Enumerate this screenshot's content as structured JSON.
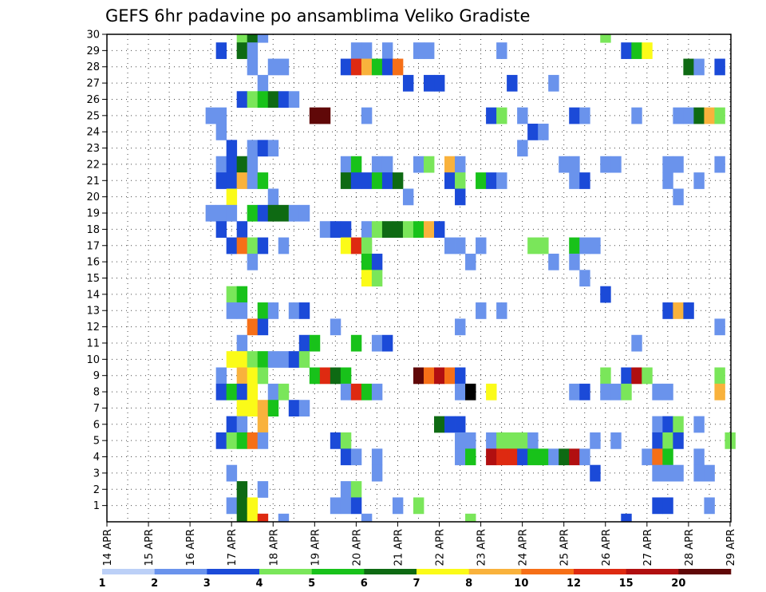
{
  "chart_data": {
    "type": "heatmap",
    "title": "GEFS 6hr padavine po ansamblima Veliko Gradiste",
    "y_ticks": [
      "1",
      "2",
      "3",
      "4",
      "5",
      "6",
      "7",
      "8",
      "9",
      "10",
      "11",
      "12",
      "13",
      "14",
      "15",
      "16",
      "17",
      "18",
      "19",
      "20",
      "21",
      "22",
      "23",
      "24",
      "25",
      "26",
      "27",
      "28",
      "29",
      "30"
    ],
    "x_ticks": [
      "14 APR",
      "15 APR",
      "16 APR",
      "17 APR",
      "18 APR",
      "19 APR",
      "20 APR",
      "21 APR",
      "22 APR",
      "23 APR",
      "24 APR",
      "25 APR",
      "26 APR",
      "27 APR",
      "28 APR",
      "29 APR"
    ],
    "x_range_days": [
      14,
      29
    ],
    "y_range_members": [
      0,
      30
    ],
    "grid": "dotted",
    "legend_position": "bottom",
    "colorbar": {
      "labels": [
        "1",
        "2",
        "3",
        "4",
        "5",
        "6",
        "7",
        "8",
        "10",
        "12",
        "15",
        "20"
      ],
      "colors": [
        "#bcd0f7",
        "#6a93ec",
        "#1b4ad8",
        "#7ae65a",
        "#18c21a",
        "#0e6a13",
        "#fbfb18",
        "#f9b23c",
        "#f66f17",
        "#de2a11",
        "#b10f10",
        "#600808"
      ]
    },
    "cells": [
      [
        17.25,
        30,
        3
      ],
      [
        17.5,
        30,
        5
      ],
      [
        17.75,
        30,
        1
      ],
      [
        26.0,
        30,
        3
      ],
      [
        16.75,
        29,
        2
      ],
      [
        17.25,
        29,
        5
      ],
      [
        17.5,
        29,
        1
      ],
      [
        20.0,
        29,
        1
      ],
      [
        20.25,
        29,
        1
      ],
      [
        20.75,
        29,
        1
      ],
      [
        21.5,
        29,
        1
      ],
      [
        21.75,
        29,
        1
      ],
      [
        23.5,
        29,
        1
      ],
      [
        26.5,
        29,
        2
      ],
      [
        26.75,
        29,
        4
      ],
      [
        27.0,
        29,
        6
      ],
      [
        17.5,
        28,
        1
      ],
      [
        18.0,
        28,
        1
      ],
      [
        18.25,
        28,
        1
      ],
      [
        19.75,
        28,
        2
      ],
      [
        20.0,
        28,
        9
      ],
      [
        20.25,
        28,
        7
      ],
      [
        20.5,
        28,
        4
      ],
      [
        20.75,
        28,
        2
      ],
      [
        21.0,
        28,
        8
      ],
      [
        28.0,
        28,
        5
      ],
      [
        28.25,
        28,
        1
      ],
      [
        28.75,
        28,
        2
      ],
      [
        17.75,
        27,
        1
      ],
      [
        21.25,
        27,
        2
      ],
      [
        21.75,
        27,
        2
      ],
      [
        22.0,
        27,
        2
      ],
      [
        23.75,
        27,
        2
      ],
      [
        24.75,
        27,
        1
      ],
      [
        17.25,
        26,
        2
      ],
      [
        17.5,
        26,
        3
      ],
      [
        17.75,
        26,
        4
      ],
      [
        18.0,
        26,
        5
      ],
      [
        18.25,
        26,
        2
      ],
      [
        18.5,
        26,
        1
      ],
      [
        16.5,
        25,
        1
      ],
      [
        16.75,
        25,
        1
      ],
      [
        19.0,
        25,
        11
      ],
      [
        19.25,
        25,
        11
      ],
      [
        20.25,
        25,
        1
      ],
      [
        23.25,
        25,
        2
      ],
      [
        23.5,
        25,
        3
      ],
      [
        24.0,
        25,
        1
      ],
      [
        25.25,
        25,
        2
      ],
      [
        25.5,
        25,
        1
      ],
      [
        26.75,
        25,
        1
      ],
      [
        27.75,
        25,
        1
      ],
      [
        28.0,
        25,
        1
      ],
      [
        28.25,
        25,
        5
      ],
      [
        28.5,
        25,
        7
      ],
      [
        28.75,
        25,
        3
      ],
      [
        16.75,
        24,
        1
      ],
      [
        24.25,
        24,
        2
      ],
      [
        24.5,
        24,
        1
      ],
      [
        17.0,
        23,
        2
      ],
      [
        17.5,
        23,
        1
      ],
      [
        17.75,
        23,
        2
      ],
      [
        18.0,
        23,
        1
      ],
      [
        24.0,
        23,
        1
      ],
      [
        16.75,
        22,
        1
      ],
      [
        17.0,
        22,
        2
      ],
      [
        17.25,
        22,
        5
      ],
      [
        17.5,
        22,
        1
      ],
      [
        19.75,
        22,
        1
      ],
      [
        20.0,
        22,
        4
      ],
      [
        20.5,
        22,
        1
      ],
      [
        20.75,
        22,
        1
      ],
      [
        21.5,
        22,
        1
      ],
      [
        21.75,
        22,
        3
      ],
      [
        22.25,
        22,
        7
      ],
      [
        22.5,
        22,
        1
      ],
      [
        25.0,
        22,
        1
      ],
      [
        25.25,
        22,
        1
      ],
      [
        26.0,
        22,
        1
      ],
      [
        26.25,
        22,
        1
      ],
      [
        27.5,
        22,
        1
      ],
      [
        27.75,
        22,
        1
      ],
      [
        28.75,
        22,
        1
      ],
      [
        16.75,
        21,
        2
      ],
      [
        17.0,
        21,
        2
      ],
      [
        17.25,
        21,
        7
      ],
      [
        17.5,
        21,
        1
      ],
      [
        17.75,
        21,
        4
      ],
      [
        19.75,
        21,
        5
      ],
      [
        20.0,
        21,
        2
      ],
      [
        20.25,
        21,
        2
      ],
      [
        20.5,
        21,
        4
      ],
      [
        20.75,
        21,
        2
      ],
      [
        21.0,
        21,
        5
      ],
      [
        22.25,
        21,
        2
      ],
      [
        22.5,
        21,
        3
      ],
      [
        23.0,
        21,
        4
      ],
      [
        23.25,
        21,
        2
      ],
      [
        23.5,
        21,
        1
      ],
      [
        25.25,
        21,
        1
      ],
      [
        25.5,
        21,
        2
      ],
      [
        27.5,
        21,
        1
      ],
      [
        28.25,
        21,
        1
      ],
      [
        17.0,
        20,
        6
      ],
      [
        18.0,
        20,
        1
      ],
      [
        21.25,
        20,
        1
      ],
      [
        22.5,
        20,
        2
      ],
      [
        27.75,
        20,
        1
      ],
      [
        16.5,
        19,
        1
      ],
      [
        16.75,
        19,
        1
      ],
      [
        17.0,
        19,
        1
      ],
      [
        17.5,
        19,
        4
      ],
      [
        17.75,
        19,
        2
      ],
      [
        18.0,
        19,
        5
      ],
      [
        18.25,
        19,
        5
      ],
      [
        18.5,
        19,
        1
      ],
      [
        18.75,
        19,
        1
      ],
      [
        16.75,
        18,
        2
      ],
      [
        17.25,
        18,
        2
      ],
      [
        19.25,
        18,
        1
      ],
      [
        19.5,
        18,
        2
      ],
      [
        19.75,
        18,
        2
      ],
      [
        20.25,
        18,
        1
      ],
      [
        20.5,
        18,
        3
      ],
      [
        20.75,
        18,
        5
      ],
      [
        21.0,
        18,
        5
      ],
      [
        21.25,
        18,
        3
      ],
      [
        21.5,
        18,
        4
      ],
      [
        21.75,
        18,
        7
      ],
      [
        22.0,
        18,
        2
      ],
      [
        17.0,
        17,
        2
      ],
      [
        17.25,
        17,
        8
      ],
      [
        17.5,
        17,
        3
      ],
      [
        17.75,
        17,
        2
      ],
      [
        18.25,
        17,
        1
      ],
      [
        19.75,
        17,
        6
      ],
      [
        20.0,
        17,
        9
      ],
      [
        20.25,
        17,
        3
      ],
      [
        22.25,
        17,
        1
      ],
      [
        22.5,
        17,
        1
      ],
      [
        23.0,
        17,
        1
      ],
      [
        24.25,
        17,
        3
      ],
      [
        24.5,
        17,
        3
      ],
      [
        25.25,
        17,
        4
      ],
      [
        25.5,
        17,
        1
      ],
      [
        25.75,
        17,
        1
      ],
      [
        17.5,
        16,
        1
      ],
      [
        20.25,
        16,
        4
      ],
      [
        20.5,
        16,
        2
      ],
      [
        22.75,
        16,
        1
      ],
      [
        24.75,
        16,
        1
      ],
      [
        25.25,
        16,
        1
      ],
      [
        20.25,
        15,
        6
      ],
      [
        20.5,
        15,
        3
      ],
      [
        25.5,
        15,
        1
      ],
      [
        17.0,
        14,
        3
      ],
      [
        17.25,
        14,
        4
      ],
      [
        26.0,
        14,
        2
      ],
      [
        17.0,
        13,
        1
      ],
      [
        17.25,
        13,
        1
      ],
      [
        17.75,
        13,
        4
      ],
      [
        18.0,
        13,
        1
      ],
      [
        18.5,
        13,
        1
      ],
      [
        18.75,
        13,
        2
      ],
      [
        23.0,
        13,
        1
      ],
      [
        23.5,
        13,
        1
      ],
      [
        27.5,
        13,
        2
      ],
      [
        27.75,
        13,
        7
      ],
      [
        28.0,
        13,
        2
      ],
      [
        17.5,
        12,
        8
      ],
      [
        17.75,
        12,
        2
      ],
      [
        19.5,
        12,
        1
      ],
      [
        22.5,
        12,
        1
      ],
      [
        28.75,
        12,
        1
      ],
      [
        17.25,
        11,
        1
      ],
      [
        18.75,
        11,
        2
      ],
      [
        19.0,
        11,
        4
      ],
      [
        20.0,
        11,
        4
      ],
      [
        20.5,
        11,
        1
      ],
      [
        20.75,
        11,
        2
      ],
      [
        26.75,
        11,
        1
      ],
      [
        17.0,
        10,
        6
      ],
      [
        17.25,
        10,
        6
      ],
      [
        17.5,
        10,
        3
      ],
      [
        17.75,
        10,
        4
      ],
      [
        18.0,
        10,
        1
      ],
      [
        18.25,
        10,
        1
      ],
      [
        18.5,
        10,
        2
      ],
      [
        18.75,
        10,
        3
      ],
      [
        16.75,
        9,
        1
      ],
      [
        17.25,
        9,
        7
      ],
      [
        17.5,
        9,
        6
      ],
      [
        17.75,
        9,
        3
      ],
      [
        19.0,
        9,
        4
      ],
      [
        19.25,
        9,
        9
      ],
      [
        19.5,
        9,
        5
      ],
      [
        19.75,
        9,
        4
      ],
      [
        21.5,
        9,
        11
      ],
      [
        21.75,
        9,
        8
      ],
      [
        22.0,
        9,
        10
      ],
      [
        22.25,
        9,
        8
      ],
      [
        22.5,
        9,
        2
      ],
      [
        26.0,
        9,
        3
      ],
      [
        26.5,
        9,
        2
      ],
      [
        26.75,
        9,
        10
      ],
      [
        27.0,
        9,
        3
      ],
      [
        28.75,
        9,
        3
      ],
      [
        16.75,
        8,
        2
      ],
      [
        17.0,
        8,
        4
      ],
      [
        17.25,
        8,
        2
      ],
      [
        17.5,
        8,
        6
      ],
      [
        18.0,
        8,
        1
      ],
      [
        18.25,
        8,
        3
      ],
      [
        19.75,
        8,
        1
      ],
      [
        20.0,
        8,
        9
      ],
      [
        20.25,
        8,
        4
      ],
      [
        20.5,
        8,
        1
      ],
      [
        22.5,
        8,
        1
      ],
      [
        22.75,
        8,
        12
      ],
      [
        23.25,
        8,
        6
      ],
      [
        25.25,
        8,
        1
      ],
      [
        25.5,
        8,
        2
      ],
      [
        26.0,
        8,
        1
      ],
      [
        26.25,
        8,
        1
      ],
      [
        26.5,
        8,
        3
      ],
      [
        27.25,
        8,
        1
      ],
      [
        27.5,
        8,
        1
      ],
      [
        28.75,
        8,
        7
      ],
      [
        17.25,
        7,
        6
      ],
      [
        17.5,
        7,
        6
      ],
      [
        17.75,
        7,
        7
      ],
      [
        18.0,
        7,
        4
      ],
      [
        18.5,
        7,
        2
      ],
      [
        18.75,
        7,
        1
      ],
      [
        17.0,
        6,
        2
      ],
      [
        17.25,
        6,
        1
      ],
      [
        17.75,
        6,
        7
      ],
      [
        22.0,
        6,
        5
      ],
      [
        22.25,
        6,
        2
      ],
      [
        22.5,
        6,
        2
      ],
      [
        27.25,
        6,
        1
      ],
      [
        27.5,
        6,
        2
      ],
      [
        27.75,
        6,
        3
      ],
      [
        28.25,
        6,
        1
      ],
      [
        16.75,
        5,
        2
      ],
      [
        17.0,
        5,
        3
      ],
      [
        17.25,
        5,
        4
      ],
      [
        17.5,
        5,
        8
      ],
      [
        17.75,
        5,
        1
      ],
      [
        19.5,
        5,
        2
      ],
      [
        19.75,
        5,
        3
      ],
      [
        22.5,
        5,
        1
      ],
      [
        22.75,
        5,
        1
      ],
      [
        23.25,
        5,
        1
      ],
      [
        23.5,
        5,
        3
      ],
      [
        23.75,
        5,
        3
      ],
      [
        24.0,
        5,
        3
      ],
      [
        24.25,
        5,
        1
      ],
      [
        25.75,
        5,
        1
      ],
      [
        26.25,
        5,
        1
      ],
      [
        27.25,
        5,
        2
      ],
      [
        27.5,
        5,
        3
      ],
      [
        27.75,
        5,
        2
      ],
      [
        29.0,
        5,
        3
      ],
      [
        19.75,
        4,
        2
      ],
      [
        20.0,
        4,
        1
      ],
      [
        20.5,
        4,
        1
      ],
      [
        22.5,
        4,
        1
      ],
      [
        22.75,
        4,
        4
      ],
      [
        23.25,
        4,
        10
      ],
      [
        23.5,
        4,
        9
      ],
      [
        23.75,
        4,
        9
      ],
      [
        24.0,
        4,
        2
      ],
      [
        24.25,
        4,
        4
      ],
      [
        24.5,
        4,
        4
      ],
      [
        24.75,
        4,
        1
      ],
      [
        25.0,
        4,
        5
      ],
      [
        25.25,
        4,
        10
      ],
      [
        25.5,
        4,
        1
      ],
      [
        27.0,
        4,
        1
      ],
      [
        27.25,
        4,
        8
      ],
      [
        27.5,
        4,
        4
      ],
      [
        28.25,
        4,
        1
      ],
      [
        17.0,
        3,
        1
      ],
      [
        20.5,
        3,
        1
      ],
      [
        25.75,
        3,
        2
      ],
      [
        27.25,
        3,
        1
      ],
      [
        27.5,
        3,
        1
      ],
      [
        27.75,
        3,
        1
      ],
      [
        28.25,
        3,
        1
      ],
      [
        28.5,
        3,
        1
      ],
      [
        17.25,
        2,
        5
      ],
      [
        17.75,
        2,
        1
      ],
      [
        19.75,
        2,
        1
      ],
      [
        20.0,
        2,
        3
      ],
      [
        17.0,
        1,
        1
      ],
      [
        17.25,
        1,
        5
      ],
      [
        17.5,
        1,
        6
      ],
      [
        19.5,
        1,
        1
      ],
      [
        19.75,
        1,
        1
      ],
      [
        20.0,
        1,
        2
      ],
      [
        21.0,
        1,
        1
      ],
      [
        21.5,
        1,
        3
      ],
      [
        27.25,
        1,
        2
      ],
      [
        27.5,
        1,
        2
      ],
      [
        28.5,
        1,
        1
      ],
      [
        17.25,
        0,
        5
      ],
      [
        17.5,
        0,
        6
      ],
      [
        17.75,
        0,
        9
      ],
      [
        18.25,
        0,
        1
      ],
      [
        20.25,
        0,
        1
      ],
      [
        22.75,
        0,
        3
      ],
      [
        26.5,
        0,
        2
      ]
    ]
  }
}
